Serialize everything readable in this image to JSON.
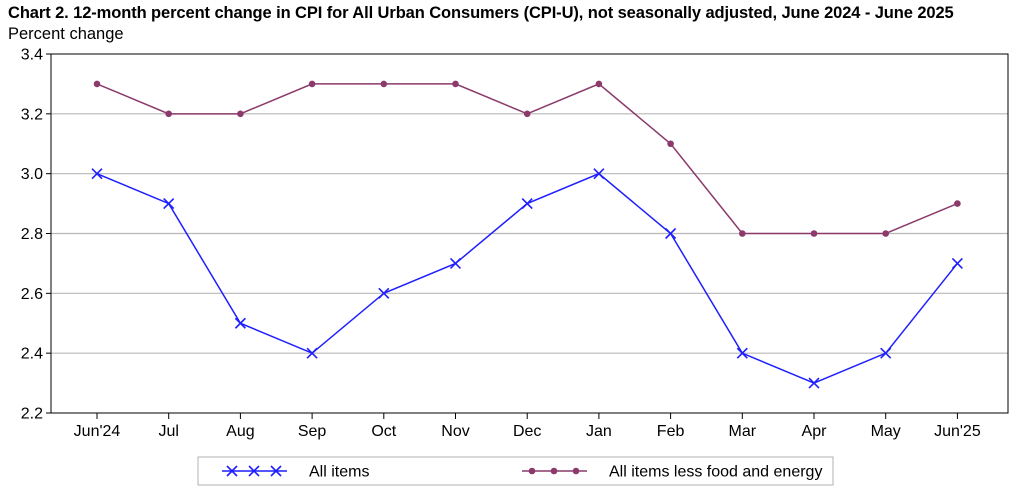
{
  "chart_data": {
    "type": "line",
    "title": "Chart 2. 12-month percent change in CPI for All Urban Consumers (CPI-U), not seasonally adjusted, June 2024 - June 2025",
    "ylabel": "Percent change",
    "xlabel": "",
    "categories": [
      "Jun'24",
      "Jul",
      "Aug",
      "Sep",
      "Oct",
      "Nov",
      "Dec",
      "Jan",
      "Feb",
      "Mar",
      "Apr",
      "May",
      "Jun'25"
    ],
    "ylim": [
      2.2,
      3.4
    ],
    "yticks": [
      "2.2",
      "2.4",
      "2.6",
      "2.8",
      "3.0",
      "3.2",
      "3.4"
    ],
    "grid": true,
    "legend_position": "bottom",
    "series": [
      {
        "name": "All items",
        "color": "#1f1fff",
        "marker": "x",
        "values": [
          3.0,
          2.9,
          2.5,
          2.4,
          2.6,
          2.7,
          2.9,
          3.0,
          2.8,
          2.4,
          2.3,
          2.4,
          2.7
        ]
      },
      {
        "name": "All items less food and energy",
        "color": "#8b3a6b",
        "marker": "circle",
        "values": [
          3.3,
          3.2,
          3.2,
          3.3,
          3.3,
          3.3,
          3.2,
          3.3,
          3.1,
          2.8,
          2.8,
          2.8,
          2.9
        ]
      }
    ]
  }
}
